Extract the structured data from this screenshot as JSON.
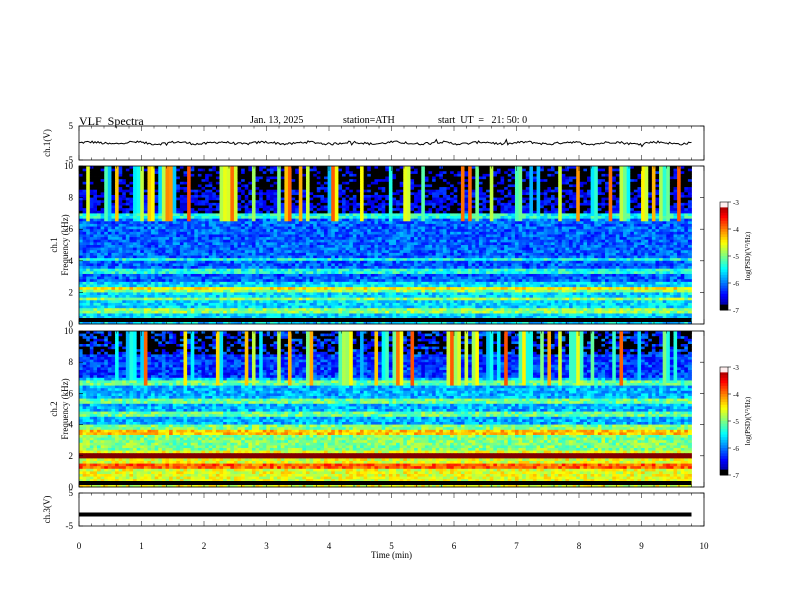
{
  "header": {
    "title": "VLF  Spectra",
    "date": "Jan. 13, 2025",
    "station": "station=ATH",
    "start": "start  UT  =   21: 50: 0"
  },
  "chart_data": {
    "type": "heatmap",
    "xlabel": "Time  (min)",
    "xlim": [
      0,
      10
    ],
    "xticks": [
      "0",
      "1",
      "2",
      "3",
      "4",
      "5",
      "6",
      "7",
      "8",
      "9",
      "10"
    ],
    "panels": [
      {
        "id": "ch1v",
        "type": "line",
        "ylabel": "ch.1(V)",
        "ylim": [
          -5,
          5
        ],
        "yticks": [
          "5",
          "-5"
        ],
        "trace_level": 0.0,
        "trace_noise": 0.35
      },
      {
        "id": "spec1",
        "type": "heatmap",
        "ylabel": "Frequency  (kHz)",
        "chlabel": "ch.1",
        "ylim": [
          0,
          10
        ],
        "yticks": [
          "0",
          "2",
          "4",
          "6",
          "8",
          "10"
        ],
        "colorbar": {
          "label": "log(PSD)(V²/Hz)",
          "range": [
            -7,
            -3
          ],
          "ticks": [
            "-3",
            "-4",
            "-5",
            "-6",
            "-7"
          ]
        },
        "bands_khz": [
          0.8,
          1.6,
          2.1,
          3.3,
          4.1,
          6.8
        ],
        "bright_band_khz": [
          2.1,
          2.35
        ]
      },
      {
        "id": "spec2",
        "type": "heatmap",
        "ylabel": "Frequency  (kHz)",
        "chlabel": "ch.2",
        "ylim": [
          0,
          10
        ],
        "yticks": [
          "0",
          "2",
          "4",
          "6",
          "8",
          "10"
        ],
        "colorbar": {
          "label": "log(PSD)(V²/Hz)",
          "range": [
            -7,
            -3
          ],
          "ticks": [
            "-3",
            "-4",
            "-5",
            "-6",
            "-7"
          ]
        },
        "bands_khz": [
          1.3,
          2.0,
          3.5,
          4.7,
          5.5,
          6.7
        ],
        "bright_band_khz": [
          1.9,
          2.2
        ]
      },
      {
        "id": "ch3v",
        "type": "line",
        "ylabel": "ch.3(V)",
        "ylim": [
          -5,
          5
        ],
        "yticks": [
          "5",
          "-5"
        ],
        "trace_level": -1.5,
        "trace_noise": 0.0
      }
    ],
    "time_extent_min": 9.8,
    "colors": {
      "frame": "#000000",
      "trace": "#000000"
    }
  }
}
